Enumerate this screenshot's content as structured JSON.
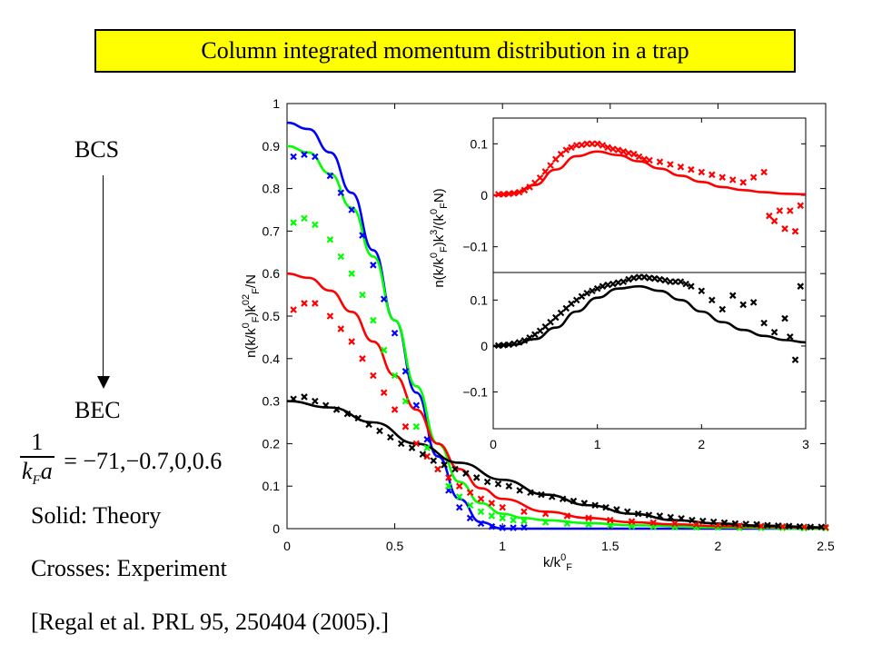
{
  "title": "Column integrated momentum distribution in a trap",
  "left_panel": {
    "bcs_label": "BCS",
    "bec_label": "BEC",
    "equation": {
      "numerator": "1",
      "denominator_k": "k",
      "denominator_sub": "F",
      "denominator_a": "a",
      "rhs": "= −71,−0.7,0,0.6"
    },
    "legend_solid": "Solid: Theory",
    "legend_crosses": "Crosses: Experiment",
    "reference": "[Regal et al. PRL 95, 250404 (2005).]"
  },
  "colors": {
    "blue": "#0000ff",
    "green": "#00ff00",
    "red": "#ff0000",
    "black": "#000000",
    "title_bg": "#ffff00"
  },
  "chart_data": [
    {
      "type": "line",
      "xlabel": "k/k_F^0",
      "ylabel": "n(k/k_F^0)k_F^02/N",
      "xlim": [
        0,
        2.5
      ],
      "ylim": [
        0,
        1
      ],
      "xticks": [
        "0",
        "0.5",
        "1",
        "1.5",
        "2",
        "2.5"
      ],
      "yticks": [
        "0",
        "0.1",
        "0.2",
        "0.3",
        "0.4",
        "0.5",
        "0.6",
        "0.7",
        "0.8",
        "0.9",
        "1"
      ],
      "series": [
        {
          "color": "blue",
          "kind": "theory",
          "x": [
            0,
            0.1,
            0.2,
            0.3,
            0.4,
            0.5,
            0.6,
            0.7,
            0.8,
            0.9,
            1.0,
            1.2,
            2.5
          ],
          "y": [
            0.955,
            0.94,
            0.885,
            0.79,
            0.655,
            0.49,
            0.32,
            0.17,
            0.07,
            0.015,
            0,
            0,
            0
          ]
        },
        {
          "color": "green",
          "kind": "theory",
          "x": [
            0,
            0.1,
            0.2,
            0.3,
            0.4,
            0.5,
            0.6,
            0.7,
            0.8,
            0.9,
            1.0,
            1.1,
            1.2,
            1.4,
            1.6,
            2.0,
            2.5
          ],
          "y": [
            0.9,
            0.885,
            0.835,
            0.755,
            0.64,
            0.49,
            0.335,
            0.2,
            0.11,
            0.06,
            0.035,
            0.025,
            0.02,
            0.013,
            0.008,
            0.003,
            0
          ]
        },
        {
          "color": "red",
          "kind": "theory",
          "x": [
            0,
            0.1,
            0.2,
            0.3,
            0.4,
            0.5,
            0.6,
            0.7,
            0.8,
            0.9,
            1.0,
            1.2,
            1.4,
            1.6,
            1.8,
            2.0,
            2.5
          ],
          "y": [
            0.6,
            0.59,
            0.56,
            0.51,
            0.44,
            0.36,
            0.28,
            0.2,
            0.14,
            0.095,
            0.07,
            0.04,
            0.025,
            0.015,
            0.01,
            0.006,
            0.002
          ]
        },
        {
          "color": "black",
          "kind": "theory",
          "x": [
            0,
            0.2,
            0.4,
            0.6,
            0.8,
            1.0,
            1.2,
            1.4,
            1.6,
            1.8,
            2.0,
            2.2,
            2.5
          ],
          "y": [
            0.3,
            0.285,
            0.25,
            0.2,
            0.155,
            0.115,
            0.08,
            0.055,
            0.035,
            0.02,
            0.012,
            0.007,
            0.003
          ]
        },
        {
          "color": "blue",
          "kind": "experiment",
          "x": [
            0.03,
            0.08,
            0.13,
            0.2,
            0.25,
            0.3,
            0.35,
            0.4,
            0.45,
            0.5,
            0.55,
            0.6,
            0.65,
            0.7,
            0.75,
            0.8,
            0.85,
            0.9,
            0.95,
            1.0,
            1.05,
            1.1
          ],
          "y": [
            0.875,
            0.88,
            0.875,
            0.83,
            0.79,
            0.75,
            0.69,
            0.62,
            0.54,
            0.46,
            0.37,
            0.29,
            0.21,
            0.14,
            0.09,
            0.05,
            0.025,
            0.012,
            0.005,
            0.002,
            0.002,
            0.003
          ]
        },
        {
          "color": "green",
          "kind": "experiment",
          "x": [
            0.03,
            0.08,
            0.13,
            0.2,
            0.25,
            0.3,
            0.35,
            0.4,
            0.45,
            0.5,
            0.55,
            0.6,
            0.65,
            0.7,
            0.75,
            0.8,
            0.85,
            0.9,
            0.95,
            1.0,
            1.05,
            1.1,
            1.2,
            1.3,
            1.4,
            1.5,
            1.6,
            1.7,
            1.8,
            1.9,
            2.0,
            2.1,
            2.2,
            2.3,
            2.4,
            2.5
          ],
          "y": [
            0.72,
            0.73,
            0.715,
            0.68,
            0.64,
            0.6,
            0.55,
            0.49,
            0.42,
            0.36,
            0.3,
            0.24,
            0.19,
            0.14,
            0.1,
            0.075,
            0.055,
            0.04,
            0.03,
            0.025,
            0.02,
            0.018,
            0.015,
            0.012,
            0.01,
            0.008,
            0.006,
            0.005,
            0.004,
            0.003,
            0.003,
            0.002,
            0.002,
            0.002,
            0.001,
            0.001
          ]
        },
        {
          "color": "red",
          "kind": "experiment",
          "x": [
            0.03,
            0.08,
            0.13,
            0.2,
            0.25,
            0.3,
            0.35,
            0.4,
            0.45,
            0.5,
            0.55,
            0.6,
            0.65,
            0.7,
            0.75,
            0.8,
            0.85,
            0.9,
            0.95,
            1.0,
            1.1,
            1.2,
            1.3,
            1.4,
            1.5,
            1.6,
            1.7,
            1.8,
            1.9,
            2.0,
            2.1,
            2.2,
            2.3,
            2.4,
            2.5
          ],
          "y": [
            0.515,
            0.53,
            0.53,
            0.5,
            0.47,
            0.44,
            0.4,
            0.36,
            0.32,
            0.28,
            0.24,
            0.2,
            0.17,
            0.14,
            0.12,
            0.1,
            0.085,
            0.07,
            0.06,
            0.05,
            0.04,
            0.035,
            0.03,
            0.025,
            0.02,
            0.017,
            0.014,
            0.012,
            0.01,
            0.008,
            0.007,
            0.006,
            0.005,
            0.004,
            0.003
          ]
        },
        {
          "color": "black",
          "kind": "experiment",
          "x": [
            0.03,
            0.08,
            0.13,
            0.18,
            0.23,
            0.28,
            0.33,
            0.38,
            0.43,
            0.48,
            0.53,
            0.58,
            0.63,
            0.68,
            0.73,
            0.78,
            0.83,
            0.88,
            0.93,
            0.98,
            1.03,
            1.08,
            1.13,
            1.18,
            1.23,
            1.28,
            1.33,
            1.38,
            1.43,
            1.48,
            1.53,
            1.58,
            1.63,
            1.68,
            1.73,
            1.78,
            1.83,
            1.88,
            1.93,
            1.98,
            2.03,
            2.08,
            2.13,
            2.18,
            2.23,
            2.28,
            2.33,
            2.38,
            2.43,
            2.48
          ],
          "y": [
            0.305,
            0.31,
            0.3,
            0.29,
            0.28,
            0.27,
            0.26,
            0.245,
            0.23,
            0.215,
            0.2,
            0.19,
            0.175,
            0.16,
            0.15,
            0.14,
            0.13,
            0.12,
            0.11,
            0.105,
            0.1,
            0.09,
            0.085,
            0.08,
            0.075,
            0.07,
            0.065,
            0.06,
            0.055,
            0.05,
            0.045,
            0.04,
            0.035,
            0.032,
            0.03,
            0.027,
            0.024,
            0.02,
            0.018,
            0.016,
            0.014,
            0.012,
            0.011,
            0.01,
            0.008,
            0.007,
            0.006,
            0.005,
            0.004,
            0.004
          ]
        }
      ]
    },
    {
      "type": "line",
      "xlabel": "",
      "ylabel": "n(k/k_F^0)k^3/(k_F^0N)",
      "xlim": [
        0,
        3
      ],
      "xticks": [
        "0",
        "1",
        "2",
        "3"
      ],
      "panels": [
        {
          "name": "upper",
          "ylim": [
            -0.15,
            0.15
          ],
          "yticks": [
            "0.1",
            "0",
            "−0.1"
          ],
          "series": [
            {
              "color": "red",
              "kind": "theory",
              "x": [
                0,
                0.2,
                0.4,
                0.6,
                0.8,
                1.0,
                1.2,
                1.4,
                1.6,
                1.8,
                2.0,
                2.2,
                2.4,
                2.6,
                2.8,
                3.0
              ],
              "y": [
                0,
                0.004,
                0.02,
                0.05,
                0.076,
                0.085,
                0.078,
                0.066,
                0.052,
                0.038,
                0.026,
                0.016,
                0.01,
                0.006,
                0.003,
                0.002
              ]
            },
            {
              "color": "red",
              "kind": "experiment",
              "x": [
                0.05,
                0.1,
                0.15,
                0.2,
                0.25,
                0.3,
                0.35,
                0.4,
                0.45,
                0.5,
                0.55,
                0.6,
                0.65,
                0.7,
                0.75,
                0.8,
                0.85,
                0.9,
                0.95,
                1.0,
                1.05,
                1.1,
                1.15,
                1.2,
                1.25,
                1.3,
                1.35,
                1.4,
                1.45,
                1.5,
                1.6,
                1.7,
                1.8,
                1.9,
                2.0,
                2.1,
                2.2,
                2.3,
                2.4,
                2.5,
                2.6,
                2.65,
                2.7,
                2.75,
                2.8,
                2.85,
                2.9,
                2.95
              ],
              "y": [
                0.002,
                0.002,
                0.003,
                0.004,
                0.006,
                0.01,
                0.016,
                0.024,
                0.034,
                0.046,
                0.058,
                0.07,
                0.08,
                0.088,
                0.093,
                0.097,
                0.098,
                0.1,
                0.1,
                0.1,
                0.097,
                0.093,
                0.09,
                0.088,
                0.085,
                0.082,
                0.08,
                0.075,
                0.07,
                0.068,
                0.065,
                0.06,
                0.055,
                0.05,
                0.045,
                0.04,
                0.035,
                0.03,
                0.025,
                0.035,
                0.045,
                -0.04,
                -0.05,
                -0.03,
                -0.065,
                -0.03,
                -0.07,
                -0.02
              ]
            }
          ]
        },
        {
          "name": "lower",
          "ylim": [
            -0.18,
            0.16
          ],
          "yticks": [
            "0.1",
            "0",
            "−0.1"
          ],
          "series": [
            {
              "color": "black",
              "kind": "theory",
              "x": [
                0,
                0.2,
                0.4,
                0.6,
                0.8,
                1.0,
                1.2,
                1.4,
                1.6,
                1.8,
                2.0,
                2.2,
                2.4,
                2.6,
                2.8,
                3.0
              ],
              "y": [
                0,
                0.003,
                0.015,
                0.04,
                0.075,
                0.105,
                0.125,
                0.13,
                0.12,
                0.1,
                0.075,
                0.052,
                0.035,
                0.022,
                0.013,
                0.008
              ]
            },
            {
              "color": "black",
              "kind": "experiment",
              "x": [
                0.05,
                0.1,
                0.15,
                0.2,
                0.25,
                0.3,
                0.35,
                0.4,
                0.45,
                0.5,
                0.55,
                0.6,
                0.65,
                0.7,
                0.75,
                0.8,
                0.85,
                0.9,
                0.95,
                1.0,
                1.05,
                1.1,
                1.15,
                1.2,
                1.25,
                1.3,
                1.35,
                1.4,
                1.45,
                1.5,
                1.55,
                1.6,
                1.65,
                1.7,
                1.75,
                1.8,
                1.85,
                1.9,
                2.0,
                2.1,
                2.2,
                2.3,
                2.4,
                2.5,
                2.6,
                2.7,
                2.8,
                2.85,
                2.9,
                2.95
              ],
              "y": [
                0.001,
                0.002,
                0.003,
                0.005,
                0.008,
                0.012,
                0.018,
                0.025,
                0.033,
                0.042,
                0.052,
                0.062,
                0.072,
                0.082,
                0.092,
                0.1,
                0.108,
                0.115,
                0.12,
                0.125,
                0.13,
                0.133,
                0.135,
                0.138,
                0.14,
                0.145,
                0.148,
                0.15,
                0.15,
                0.148,
                0.147,
                0.145,
                0.143,
                0.14,
                0.14,
                0.14,
                0.135,
                0.13,
                0.12,
                0.1,
                0.08,
                0.11,
                0.09,
                0.095,
                0.05,
                0.03,
                0.06,
                0.02,
                -0.03,
                0.13
              ]
            }
          ]
        }
      ]
    }
  ]
}
